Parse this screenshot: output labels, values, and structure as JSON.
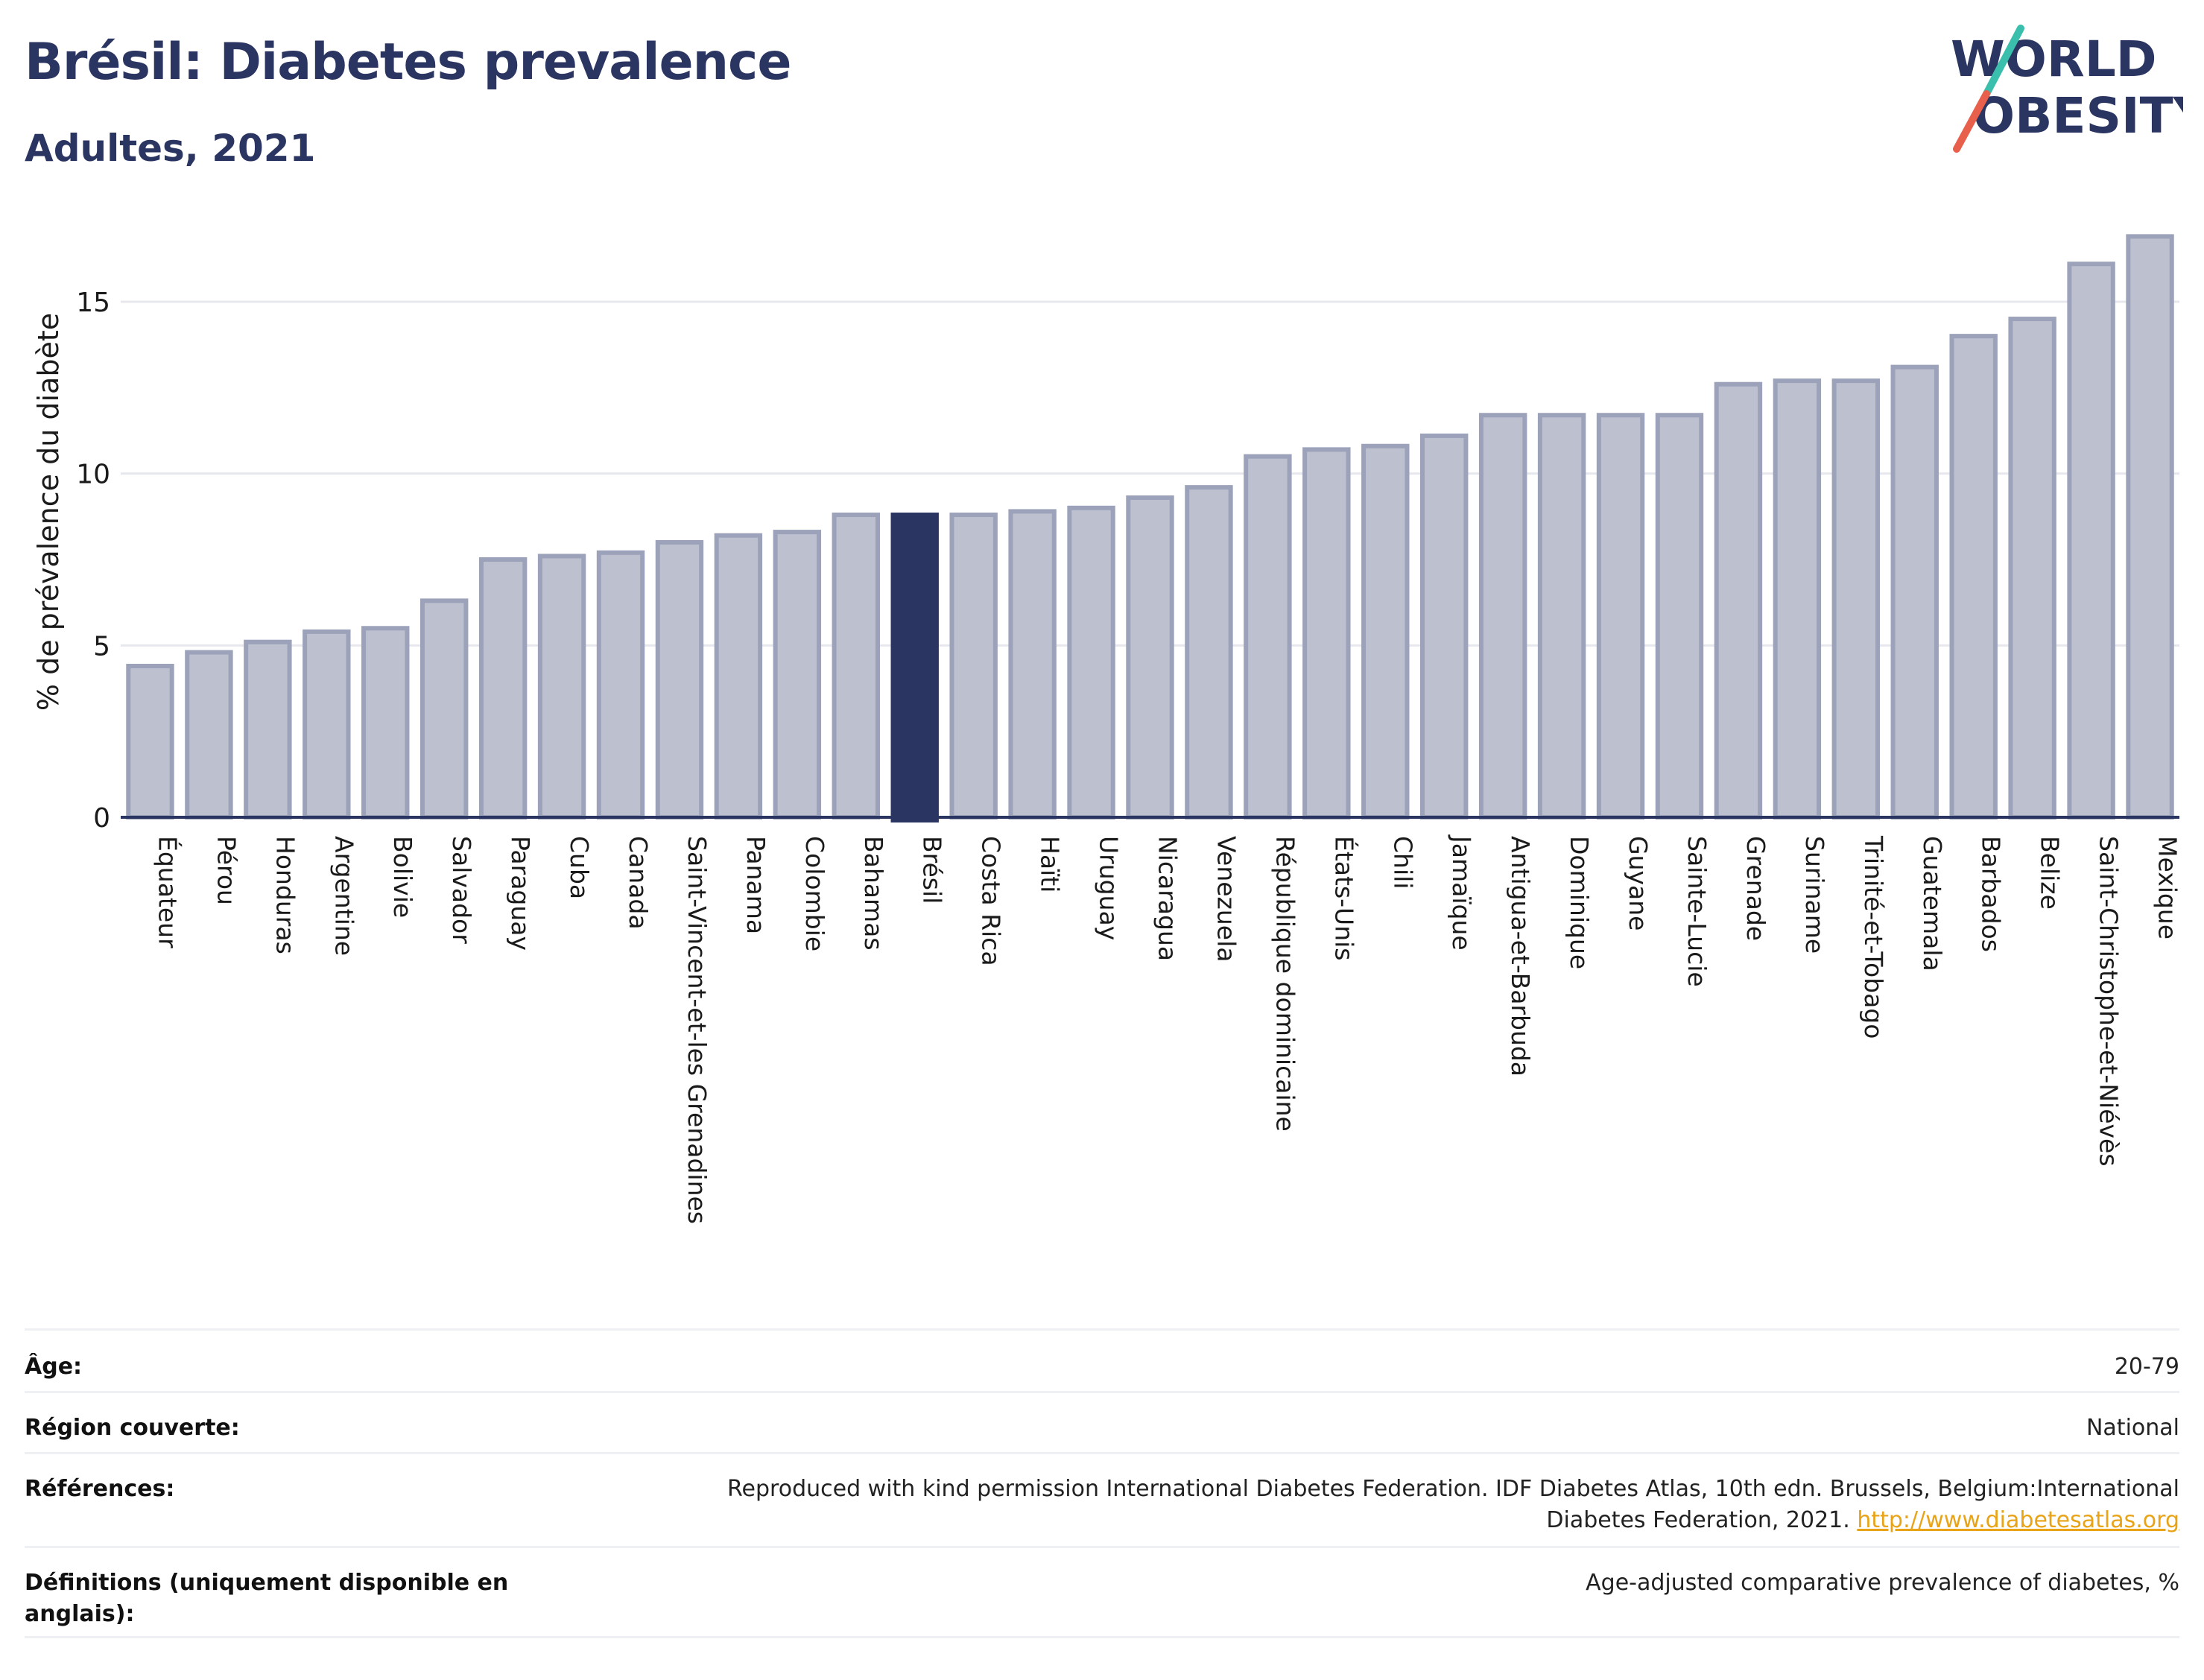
{
  "header": {
    "title": "Brésil: Diabetes prevalence",
    "subtitle": "Adultes, 2021"
  },
  "logo": {
    "line1": "WORLD",
    "line2": "OBESITY",
    "colors": {
      "text": "#2b3561",
      "slash_top": "#3bbfad",
      "slash_bottom": "#e8604c"
    }
  },
  "colors": {
    "bar_fill": "#bcc0cf",
    "bar_stroke": "#9ca2b9",
    "highlight_fill": "#2b3561",
    "grid": "#e6e8ee",
    "axis": "#2b3561"
  },
  "chart_data": {
    "type": "bar",
    "title": "",
    "xlabel": "",
    "ylabel": "% de prévalence du diabète",
    "ylim": [
      0,
      17.2
    ],
    "yticks": [
      0,
      5,
      10,
      15
    ],
    "grid": true,
    "highlight": "Brésil",
    "categories": [
      "Équateur",
      "Pérou",
      "Honduras",
      "Argentine",
      "Bolivie",
      "Salvador",
      "Paraguay",
      "Cuba",
      "Canada",
      "Saint-Vincent-et-les Grenadines",
      "Panama",
      "Colombie",
      "Bahamas",
      "Brésil",
      "Costa Rica",
      "Haïti",
      "Uruguay",
      "Nicaragua",
      "Venezuela",
      "République dominicaine",
      "États-Unis",
      "Chili",
      "Jamaïque",
      "Antigua-et-Barbuda",
      "Dominique",
      "Guyane",
      "Sainte-Lucie",
      "Grenade",
      "Suriname",
      "Trinité-et-Tobago",
      "Guatemala",
      "Barbados",
      "Belize",
      "Saint-Christophe-et-Niévès",
      "Mexique"
    ],
    "values": [
      4.4,
      4.8,
      5.1,
      5.4,
      5.5,
      6.3,
      7.5,
      7.6,
      7.7,
      8.0,
      8.2,
      8.3,
      8.8,
      8.8,
      8.8,
      8.9,
      9.0,
      9.3,
      9.6,
      10.5,
      10.7,
      10.8,
      11.1,
      11.7,
      11.7,
      11.7,
      11.7,
      12.6,
      12.7,
      12.7,
      13.1,
      14.0,
      14.5,
      16.1,
      16.9
    ]
  },
  "info": {
    "age": {
      "label": "Âge:",
      "value": "20-79"
    },
    "region": {
      "label": "Région couverte:",
      "value": "National"
    },
    "references": {
      "label": "Références:",
      "value": "Reproduced with kind permission International Diabetes Federation.  IDF Diabetes Atlas, 10th edn. Brussels, Belgium:International Diabetes Federation, 2021. ",
      "link": "http://www.diabetesatlas.org"
    },
    "definitions": {
      "label": "Définitions (uniquement disponible en anglais):",
      "value": "Age-adjusted comparative prevalence of diabetes, %"
    }
  }
}
